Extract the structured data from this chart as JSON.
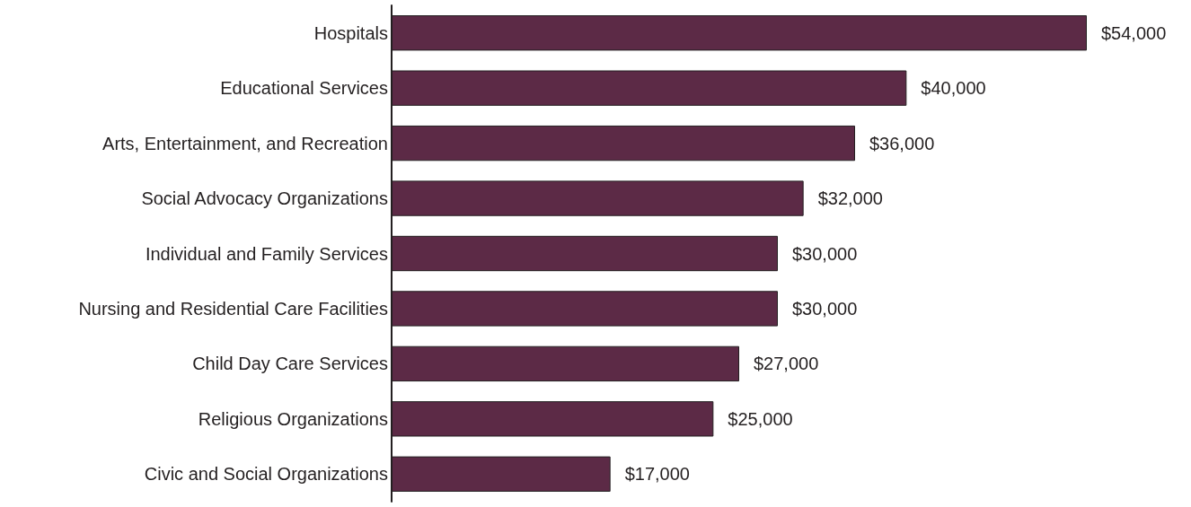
{
  "chart_data": {
    "type": "bar",
    "orientation": "horizontal",
    "tick_labels": "y",
    "categories": [
      "Hospitals",
      "Educational Services",
      "Arts, Entertainment, and Recreation",
      "Social Advocacy Organizations",
      "Individual and Family Services",
      "Nursing and Residential Care Facilities",
      "Child Day Care Services",
      "Religious Organizations",
      "Civic and Social Organizations"
    ],
    "values": [
      54000,
      40000,
      36000,
      32000,
      30000,
      30000,
      27000,
      25000,
      17000
    ],
    "value_labels": [
      "$54,000",
      "$40,000",
      "$36,000",
      "$32,000",
      "$30,000",
      "$30,000",
      "$27,000",
      "$25,000",
      "$17,000"
    ],
    "color": "#5c2a46"
  }
}
